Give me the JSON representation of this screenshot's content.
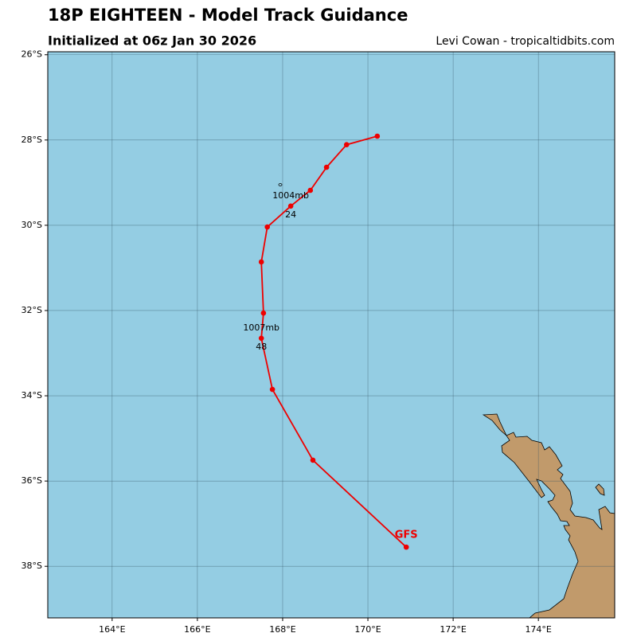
{
  "chart_data": {
    "type": "line",
    "title": "18P EIGHTEEN - Model Track Guidance",
    "subtitle": "Initialized at 06z Jan 30 2026",
    "credit": "Levi Cowan - tropicaltidbits.com",
    "x": [
      170.22,
      169.5,
      169.03,
      168.65,
      168.19,
      167.64,
      167.5,
      167.55,
      167.5,
      167.76,
      168.71,
      170.9
    ],
    "series": [
      {
        "name": "GFS",
        "color": "#ee0000",
        "values": [
          -27.91,
          -28.11,
          -28.64,
          -29.18,
          -29.55,
          -30.04,
          -30.86,
          -32.06,
          -32.65,
          -33.85,
          -35.51,
          -37.55
        ]
      }
    ],
    "annotations": [
      {
        "text": "1004mb",
        "x": 168.19,
        "y": -29.55
      },
      {
        "text": "24",
        "x": 168.19,
        "y": -29.55
      },
      {
        "text": "1007mb",
        "x": 167.5,
        "y": -32.65
      },
      {
        "text": "48",
        "x": 167.5,
        "y": -32.65
      }
    ],
    "xlim": [
      162.49,
      175.79
    ],
    "ylim": [
      -39.21,
      -25.93
    ],
    "xticks": [
      {
        "value": 164,
        "label": "164°E"
      },
      {
        "value": 166,
        "label": "166°E"
      },
      {
        "value": 168,
        "label": "168°E"
      },
      {
        "value": 170,
        "label": "170°E"
      },
      {
        "value": 172,
        "label": "172°E"
      },
      {
        "value": 174,
        "label": "174°E"
      }
    ],
    "yticks": [
      {
        "value": -26,
        "label": "26°S"
      },
      {
        "value": -28,
        "label": "28°S"
      },
      {
        "value": -30,
        "label": "30°S"
      },
      {
        "value": -32,
        "label": "32°S"
      },
      {
        "value": -34,
        "label": "34°S"
      },
      {
        "value": -36,
        "label": "36°S"
      },
      {
        "value": -38,
        "label": "38°S"
      }
    ],
    "grid": true,
    "ocean_color": "#94cde3",
    "land_color": "#c19a6b"
  }
}
